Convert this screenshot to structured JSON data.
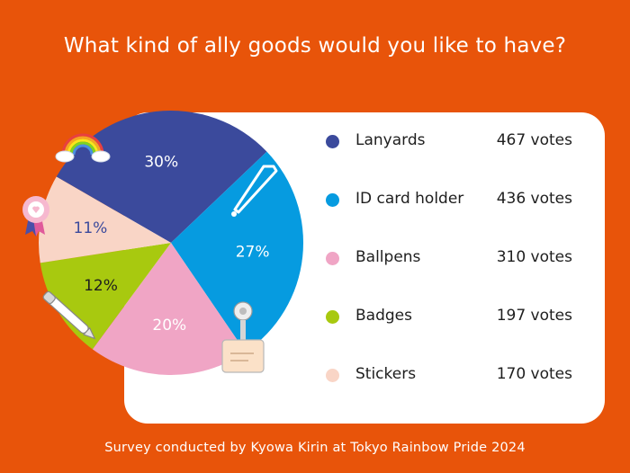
{
  "title": "What kind of ally goods would you like to have?",
  "footer": "Survey conducted by Kyowa Kirin at Tokyo Rainbow Pride 2024",
  "colors": {
    "background": "#E8540A",
    "card": "#FFFFFF",
    "text_dark": "#1E1E1E",
    "text_light": "#FFFFFF"
  },
  "icons": [
    "rainbow-cloud-icon",
    "rosette-badge-icon",
    "ballpen-icon",
    "lanyard-icon",
    "id-card-holder-icon"
  ],
  "legend": [
    {
      "label": "Lanyards",
      "votes": "467 votes",
      "color": "#3B4A9C"
    },
    {
      "label": "ID card holder",
      "votes": "436 votes",
      "color": "#069BE0"
    },
    {
      "label": "Ballpens",
      "votes": "310 votes",
      "color": "#F0A5C5"
    },
    {
      "label": "Badges",
      "votes": "197 votes",
      "color": "#A8C90F"
    },
    {
      "label": "Stickers",
      "votes": "170 votes",
      "color": "#F9D5C6"
    }
  ],
  "chart_data": {
    "type": "pie",
    "title": "What kind of ally goods would you like to have?",
    "categories": [
      "Lanyards",
      "ID card holder",
      "Ballpens",
      "Badges",
      "Stickers"
    ],
    "values": [
      467,
      436,
      310,
      197,
      170
    ],
    "percent_labels": [
      "30%",
      "27%",
      "20%",
      "12%",
      "11%"
    ],
    "colors": [
      "#3B4A9C",
      "#069BE0",
      "#F0A5C5",
      "#A8C90F",
      "#F9D5C6"
    ],
    "label_colors": [
      "#FFFFFF",
      "#FFFFFF",
      "#FFFFFF",
      "#1E1E1E",
      "#3B4A9C"
    ],
    "legend_placement": "right"
  }
}
